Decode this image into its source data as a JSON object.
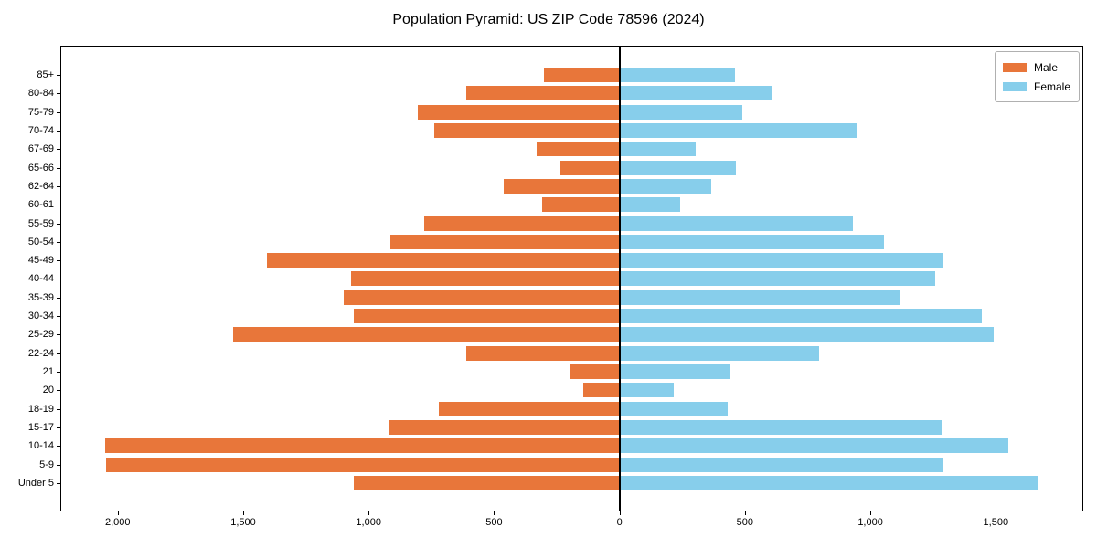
{
  "chart_data": {
    "type": "bar",
    "subtype": "population-pyramid",
    "orientation": "horizontal",
    "title": "Population Pyramid: US ZIP Code 78596 (2024)",
    "grid": false,
    "background": "#ffffff",
    "frame_color": "#000000",
    "categories_top_to_bottom": [
      "85+",
      "80-84",
      "75-79",
      "70-74",
      "67-69",
      "65-66",
      "62-64",
      "60-61",
      "55-59",
      "50-54",
      "45-49",
      "40-44",
      "35-39",
      "30-34",
      "25-29",
      "22-24",
      "21",
      "20",
      "18-19",
      "15-17",
      "10-14",
      "5-9",
      "Under 5"
    ],
    "series": [
      {
        "name": "Male",
        "side": "left",
        "color": "#e8763a",
        "values": [
          300,
          610,
          805,
          740,
          330,
          235,
          460,
          310,
          780,
          915,
          1405,
          1070,
          1100,
          1060,
          1540,
          610,
          195,
          145,
          720,
          920,
          2050,
          2045,
          1060
        ]
      },
      {
        "name": "Female",
        "side": "right",
        "color": "#87ceeb",
        "values": [
          460,
          610,
          490,
          945,
          305,
          465,
          365,
          240,
          930,
          1055,
          1290,
          1260,
          1120,
          1445,
          1490,
          795,
          440,
          215,
          430,
          1285,
          1550,
          1290,
          1670
        ]
      }
    ],
    "xaxis": {
      "xlim": [
        -2225,
        1845
      ],
      "tick_values": [
        -2000,
        -1500,
        -1000,
        -500,
        0,
        500,
        1000,
        1500
      ],
      "tick_labels": [
        "2,000",
        "1,500",
        "1,000",
        "500",
        "0",
        "500",
        "1,000",
        "1,500"
      ]
    },
    "legend": {
      "position": "upper-right",
      "items": [
        {
          "label": "Male",
          "color": "#e8763a"
        },
        {
          "label": "Female",
          "color": "#87ceeb"
        }
      ]
    }
  }
}
